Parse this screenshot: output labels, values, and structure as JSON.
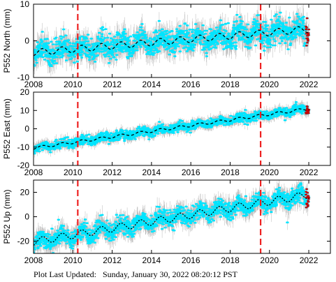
{
  "footer": {
    "label": "Plot Last Updated:",
    "timestamp": "Sunday, January 30, 2022 08:20:12 PST"
  },
  "colors": {
    "data_points": "#00e5ff",
    "error_bars": "#b0b0b0",
    "model": "#000000",
    "offset_lines": "#ee2222",
    "recent_points": "#cc0000"
  },
  "chart_data": [
    {
      "type": "scatter",
      "ylabel": "P552 North (mm)",
      "xlim": [
        2008,
        2023.1
      ],
      "ylim": [
        -10,
        10
      ],
      "xticks": [
        2008,
        2010,
        2012,
        2014,
        2016,
        2018,
        2020,
        2022
      ],
      "yticks": [
        -10,
        0,
        10
      ],
      "show_xtick_labels": false,
      "offset_lines": [
        2010.25,
        2019.55
      ],
      "trend": {
        "x": [
          2008.0,
          2022.0
        ],
        "y": [
          -3.2,
          3.2
        ]
      },
      "seasonal_amplitude": 0.9,
      "scatter_sd": 1.6,
      "error_sd": 2.3
    },
    {
      "type": "scatter",
      "ylabel": "P552 East (mm)",
      "xlim": [
        2008,
        2023.1
      ],
      "ylim": [
        -20,
        20
      ],
      "xticks": [
        2008,
        2010,
        2012,
        2014,
        2016,
        2018,
        2020,
        2022
      ],
      "yticks": [
        -20,
        -10,
        0,
        10,
        20
      ],
      "show_xtick_labels": false,
      "offset_lines": [
        2010.25,
        2019.55
      ],
      "trend": {
        "x": [
          2008.0,
          2022.0
        ],
        "y": [
          -10.5,
          11.0
        ]
      },
      "seasonal_amplitude": 0.7,
      "scatter_sd": 1.2,
      "error_sd": 2.0
    },
    {
      "type": "scatter",
      "ylabel": "P552 Up (mm)",
      "xlim": [
        2008,
        2023.1
      ],
      "ylim": [
        -30,
        30
      ],
      "xticks": [
        2008,
        2010,
        2012,
        2014,
        2016,
        2018,
        2020,
        2022
      ],
      "yticks": [
        -20,
        0,
        20
      ],
      "show_xtick_labels": true,
      "offset_lines": [
        2010.25,
        2019.55
      ],
      "trend": {
        "x": [
          2008.0,
          2022.0
        ],
        "y": [
          -20.5,
          18.0
        ]
      },
      "seasonal_amplitude": 3.0,
      "scatter_sd": 3.5,
      "error_sd": 5.5
    }
  ]
}
